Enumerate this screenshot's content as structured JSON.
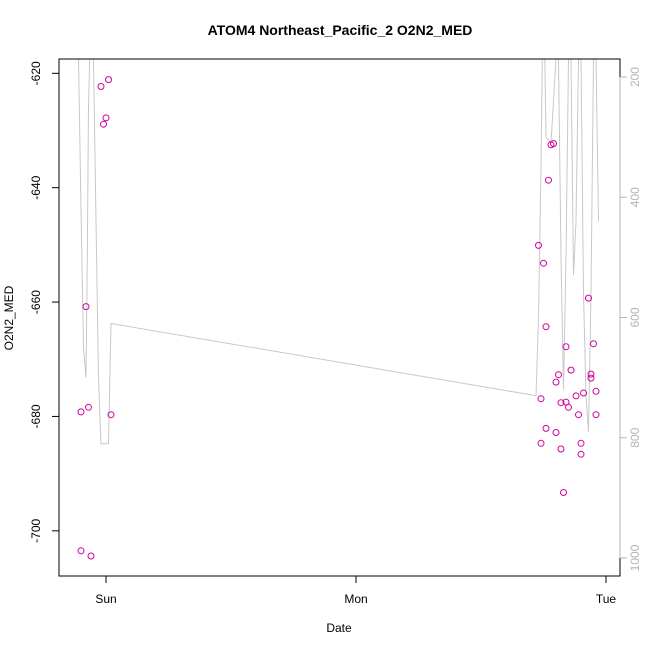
{
  "chart_data": {
    "type": "scatter",
    "title": "ATOM4 Northeast_Pacific_2 O2N2_MED",
    "xlabel": "Date",
    "ylabel": "O2N2_MED",
    "x_ticks": [
      "Sun",
      "Mon",
      "Tue"
    ],
    "y_ticks": [
      -620,
      -640,
      -660,
      -680,
      -700
    ],
    "y_lim": [
      -707.9,
      -617.5
    ],
    "y2_ticks": [
      200,
      400,
      600,
      800,
      1000
    ],
    "y2_lim": [
      1030,
      170
    ],
    "grid": false,
    "series": [
      {
        "type": "scatter",
        "color": "#d4009a",
        "points": [
          {
            "x": -0.1,
            "y": -703.5
          },
          {
            "x": -0.1,
            "y": -679.2
          },
          {
            "x": -0.08,
            "y": -660.8
          },
          {
            "x": -0.07,
            "y": -678.4
          },
          {
            "x": -0.06,
            "y": -704.4
          },
          {
            "x": -0.02,
            "y": -622.3
          },
          {
            "x": -0.01,
            "y": -628.9
          },
          {
            "x": 0.0,
            "y": -627.8
          },
          {
            "x": 0.01,
            "y": -621.1
          },
          {
            "x": 0.02,
            "y": -679.7
          },
          {
            "x": 1.73,
            "y": -650.1
          },
          {
            "x": 1.74,
            "y": -684.7
          },
          {
            "x": 1.74,
            "y": -676.9
          },
          {
            "x": 1.75,
            "y": -653.2
          },
          {
            "x": 1.76,
            "y": -682.1
          },
          {
            "x": 1.76,
            "y": -664.3
          },
          {
            "x": 1.77,
            "y": -638.7
          },
          {
            "x": 1.78,
            "y": -632.5
          },
          {
            "x": 1.79,
            "y": -632.3
          },
          {
            "x": 1.8,
            "y": -682.8
          },
          {
            "x": 1.8,
            "y": -674.0
          },
          {
            "x": 1.81,
            "y": -672.7
          },
          {
            "x": 1.82,
            "y": -685.7
          },
          {
            "x": 1.82,
            "y": -677.6
          },
          {
            "x": 1.83,
            "y": -693.3
          },
          {
            "x": 1.84,
            "y": -677.5
          },
          {
            "x": 1.84,
            "y": -667.8
          },
          {
            "x": 1.85,
            "y": -678.4
          },
          {
            "x": 1.86,
            "y": -671.9
          },
          {
            "x": 1.88,
            "y": -676.4
          },
          {
            "x": 1.89,
            "y": -679.7
          },
          {
            "x": 1.9,
            "y": -684.7
          },
          {
            "x": 1.9,
            "y": -686.6
          },
          {
            "x": 1.91,
            "y": -675.9
          },
          {
            "x": 1.93,
            "y": -659.3
          },
          {
            "x": 1.94,
            "y": -672.6
          },
          {
            "x": 1.94,
            "y": -673.3
          },
          {
            "x": 1.95,
            "y": -667.3
          },
          {
            "x": 1.96,
            "y": -675.6
          },
          {
            "x": 1.96,
            "y": -679.7
          }
        ]
      },
      {
        "type": "line",
        "axis": "right",
        "color": "#c8c8c8",
        "points": [
          {
            "x": -0.11,
            "y": 170
          },
          {
            "x": -0.1,
            "y": 420
          },
          {
            "x": -0.09,
            "y": 650
          },
          {
            "x": -0.08,
            "y": 700
          },
          {
            "x": -0.075,
            "y": 500
          },
          {
            "x": -0.07,
            "y": 250
          },
          {
            "x": -0.065,
            "y": 170
          },
          {
            "x": -0.05,
            "y": 170
          },
          {
            "x": -0.04,
            "y": 440
          },
          {
            "x": -0.03,
            "y": 700
          },
          {
            "x": -0.02,
            "y": 810
          },
          {
            "x": 0.0,
            "y": 810
          },
          {
            "x": 0.01,
            "y": 810
          },
          {
            "x": 0.02,
            "y": 610
          },
          {
            "x": 1.72,
            "y": 730
          },
          {
            "x": 1.73,
            "y": 600
          },
          {
            "x": 1.74,
            "y": 350
          },
          {
            "x": 1.745,
            "y": 170
          },
          {
            "x": 1.755,
            "y": 170
          },
          {
            "x": 1.76,
            "y": 300
          },
          {
            "x": 1.78,
            "y": 310
          },
          {
            "x": 1.8,
            "y": 170
          },
          {
            "x": 1.81,
            "y": 170
          },
          {
            "x": 1.82,
            "y": 500
          },
          {
            "x": 1.83,
            "y": 720
          },
          {
            "x": 1.84,
            "y": 500
          },
          {
            "x": 1.85,
            "y": 170
          },
          {
            "x": 1.86,
            "y": 170
          },
          {
            "x": 1.87,
            "y": 530
          },
          {
            "x": 1.88,
            "y": 440
          },
          {
            "x": 1.89,
            "y": 170
          },
          {
            "x": 1.9,
            "y": 170
          },
          {
            "x": 1.91,
            "y": 560
          },
          {
            "x": 1.92,
            "y": 730
          },
          {
            "x": 1.93,
            "y": 790
          },
          {
            "x": 1.94,
            "y": 560
          },
          {
            "x": 1.95,
            "y": 170
          },
          {
            "x": 1.96,
            "y": 170
          },
          {
            "x": 1.97,
            "y": 440
          }
        ]
      }
    ]
  }
}
